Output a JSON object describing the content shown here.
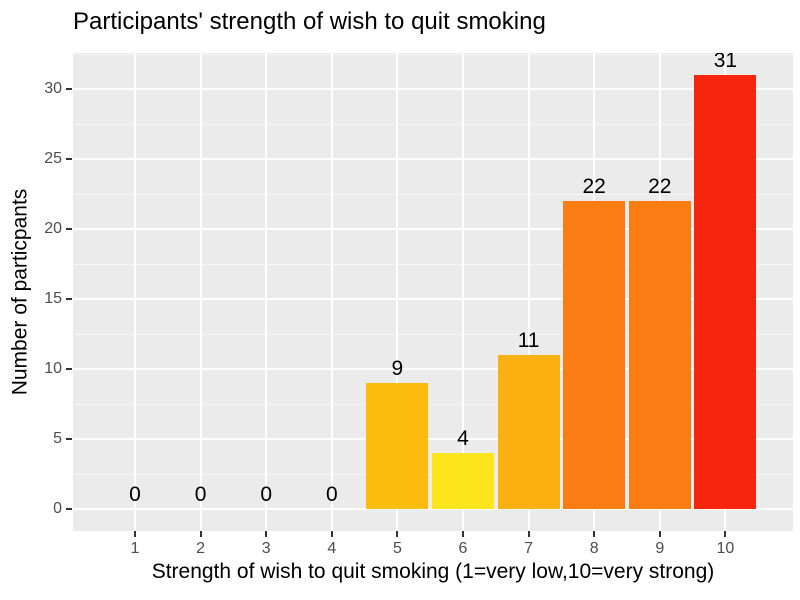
{
  "chart_data": {
    "type": "bar",
    "title": "Participants' strength of wish to quit smoking",
    "xlabel": "Strength of wish to quit smoking (1=very low,10=very strong)",
    "ylabel": "Number of particpants",
    "categories": [
      "1",
      "2",
      "3",
      "4",
      "5",
      "6",
      "7",
      "8",
      "9",
      "10"
    ],
    "values": [
      0,
      0,
      0,
      0,
      9,
      4,
      11,
      22,
      22,
      31
    ],
    "bar_labels": [
      "0",
      "0",
      "0",
      "0",
      "9",
      "4",
      "11",
      "22",
      "22",
      "31"
    ],
    "bar_colors": [
      "#FFFF00",
      "#FFF400",
      "#FFEA00",
      "#FFE000",
      "#FBBC0F",
      "#FCE51C",
      "#FBB012",
      "#FA7D13",
      "#FA7D13",
      "#F5250E"
    ],
    "yticks": [
      0,
      5,
      10,
      15,
      20,
      25,
      30
    ],
    "yticks_minor": [
      2.5,
      7.5,
      12.5,
      17.5,
      22.5,
      27.5,
      32.5
    ],
    "ylim": [
      0,
      32.6
    ],
    "grid": true,
    "legend_position": "none",
    "panel_bg": "#EBEBEB",
    "grid_color": "#FFFFFF",
    "tick_label_color": "#4D4D4D",
    "label_color": "#000000"
  }
}
